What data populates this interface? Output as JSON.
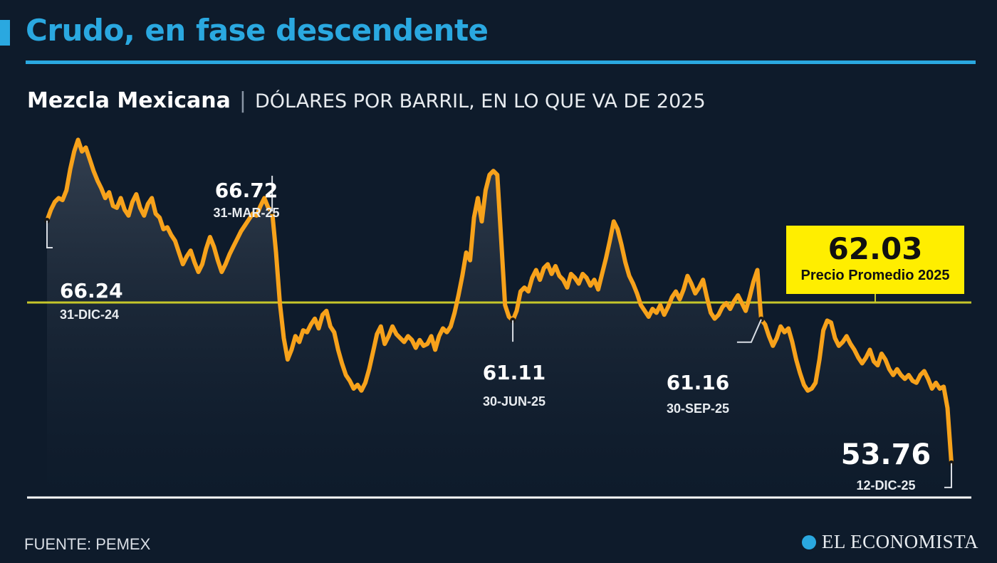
{
  "title": "Crudo, en fase descendente",
  "subtitle_bold": "Mezcla Mexicana",
  "subtitle_unit": "DÓLARES POR BARRIL, EN LO QUE VA DE 2025",
  "source": "FUENTE: PEMEX",
  "logo": "EL ECONOMISTA",
  "average": {
    "value": "62.03",
    "label": "Precio Promedio 2025"
  },
  "colors": {
    "accent": "#2aa8e0",
    "line": "#f7a21b",
    "average_line": "#c6c62a",
    "average_box": "#ffee00",
    "background": "#0e1b2b"
  },
  "chart_data": {
    "type": "area",
    "title": "Mezcla Mexicana",
    "ylabel": "DÓLARES POR BARRIL",
    "ylim": [
      52,
      71
    ],
    "grid": false,
    "average_line": 62.03,
    "annotations": [
      {
        "value": "66.24",
        "date": "31-DIC-24",
        "idx": 0
      },
      {
        "value": "66.72",
        "date": "31-MAR-25",
        "idx": 58
      },
      {
        "value": "61.11",
        "date": "30-JUN-25",
        "idx": 120
      },
      {
        "value": "61.16",
        "date": "30-SEP-25",
        "idx": 184
      },
      {
        "value": "53.76",
        "date": "12-DIC-25",
        "idx": 233
      }
    ],
    "series": [
      {
        "values": [
          66.24,
          66.8,
          67.2,
          67.4,
          67.3,
          67.8,
          68.9,
          69.8,
          70.4,
          69.8,
          70.0,
          69.4,
          68.8,
          68.3,
          67.9,
          67.4,
          67.7,
          67.0,
          66.9,
          67.4,
          66.8,
          66.5,
          67.2,
          67.6,
          66.9,
          66.5,
          67.1,
          67.4,
          66.6,
          66.4,
          65.8,
          65.9,
          65.5,
          65.2,
          64.6,
          64.0,
          64.4,
          64.7,
          64.1,
          63.6,
          64.0,
          64.8,
          65.4,
          64.9,
          64.2,
          63.6,
          64.0,
          64.5,
          64.9,
          65.3,
          65.7,
          66.0,
          66.3,
          66.6,
          66.5,
          67.0,
          67.4,
          66.9,
          66.72,
          64.6,
          62.0,
          60.2,
          59.1,
          59.6,
          60.3,
          60.0,
          60.6,
          60.5,
          60.9,
          61.2,
          60.7,
          61.4,
          61.6,
          60.8,
          60.5,
          59.6,
          58.9,
          58.3,
          58.0,
          57.6,
          57.8,
          57.5,
          57.9,
          58.6,
          59.5,
          60.4,
          60.8,
          59.9,
          60.3,
          60.8,
          60.4,
          60.2,
          60.0,
          60.3,
          60.1,
          59.7,
          60.1,
          59.8,
          59.9,
          60.3,
          59.6,
          60.3,
          60.7,
          60.5,
          60.8,
          61.5,
          62.4,
          63.4,
          64.6,
          64.2,
          66.4,
          67.4,
          66.2,
          67.8,
          68.6,
          68.8,
          68.6,
          65.3,
          61.9,
          61.3,
          61.11,
          61.6,
          62.6,
          62.8,
          62.6,
          63.3,
          63.7,
          63.2,
          63.8,
          64.0,
          63.5,
          63.9,
          63.4,
          63.2,
          62.8,
          63.5,
          63.3,
          63.0,
          63.5,
          63.3,
          62.9,
          63.2,
          62.7,
          63.5,
          64.3,
          65.2,
          66.2,
          65.8,
          65.0,
          64.1,
          63.4,
          63.0,
          62.5,
          61.9,
          61.6,
          61.3,
          61.7,
          61.5,
          61.9,
          61.4,
          61.8,
          62.3,
          62.6,
          62.2,
          62.7,
          63.4,
          63.0,
          62.5,
          62.8,
          63.2,
          62.3,
          61.5,
          61.2,
          61.4,
          61.8,
          62.0,
          61.7,
          62.1,
          62.4,
          62.0,
          61.6,
          62.3,
          63.1,
          63.7,
          61.16,
          60.9,
          60.3,
          59.8,
          60.2,
          60.8,
          60.5,
          60.7,
          60.0,
          59.1,
          58.4,
          57.8,
          57.5,
          57.6,
          57.9,
          59.1,
          60.6,
          61.1,
          61.0,
          60.2,
          59.8,
          60.0,
          60.3,
          59.9,
          59.6,
          59.2,
          58.9,
          59.2,
          59.6,
          59.0,
          58.8,
          59.4,
          59.1,
          58.6,
          58.3,
          58.6,
          58.3,
          58.1,
          58.3,
          58.0,
          57.9,
          58.3,
          58.5,
          58.1,
          57.6,
          57.9,
          57.6,
          57.7,
          56.6,
          53.76
        ]
      }
    ]
  }
}
